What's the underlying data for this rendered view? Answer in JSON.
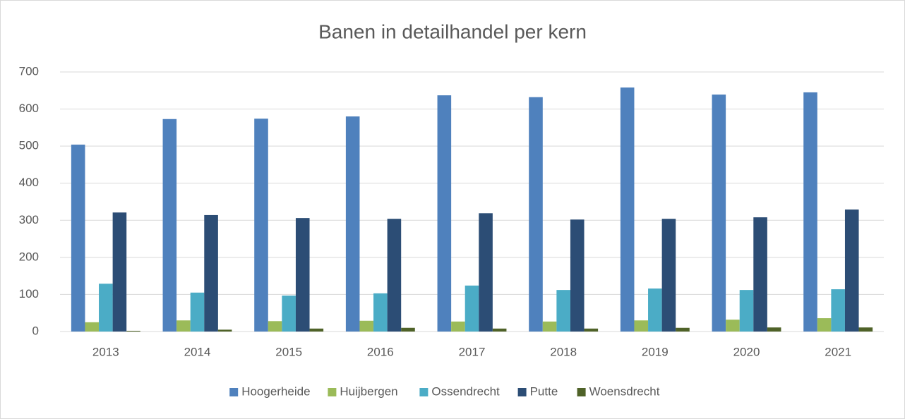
{
  "chart_data": {
    "type": "bar",
    "title": "Banen in detailhandel per kern",
    "categories": [
      "2013",
      "2014",
      "2015",
      "2016",
      "2017",
      "2018",
      "2019",
      "2020",
      "2021"
    ],
    "series": [
      {
        "name": "Hoogerheide",
        "color": "#4f81bd",
        "values": [
          504,
          573,
          574,
          580,
          637,
          632,
          658,
          639,
          645
        ]
      },
      {
        "name": "Huijbergen",
        "color": "#9bbb59",
        "values": [
          25,
          30,
          28,
          29,
          27,
          27,
          30,
          32,
          36
        ]
      },
      {
        "name": "Ossendrecht",
        "color": "#4bacc6",
        "values": [
          129,
          105,
          97,
          103,
          124,
          112,
          116,
          112,
          114
        ]
      },
      {
        "name": "Putte",
        "color": "#2c4d75",
        "values": [
          321,
          314,
          306,
          304,
          319,
          302,
          304,
          308,
          329
        ]
      },
      {
        "name": "Woensdrecht",
        "color": "#4f6228",
        "values": [
          2,
          5,
          8,
          10,
          8,
          8,
          10,
          11,
          11
        ]
      }
    ],
    "ylim": [
      0,
      700
    ],
    "yticks": [
      0,
      100,
      200,
      300,
      400,
      500,
      600,
      700
    ],
    "grid": true,
    "legend": "bottom"
  }
}
